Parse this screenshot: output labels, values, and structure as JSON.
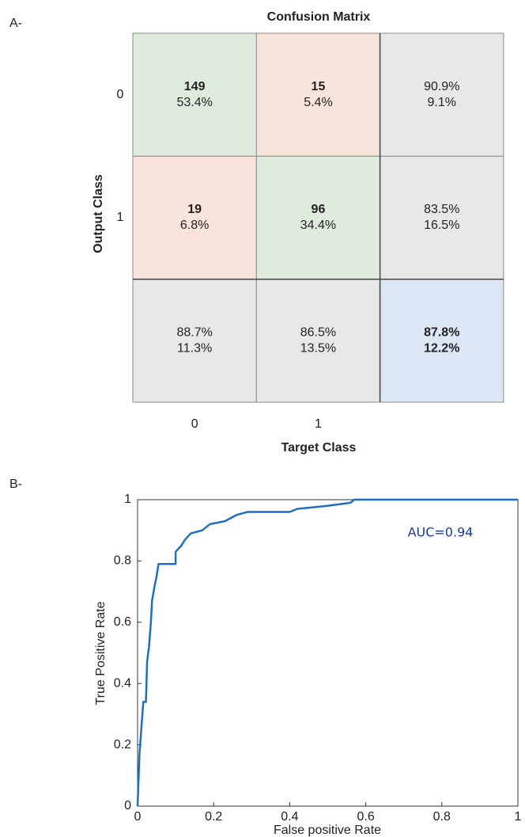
{
  "chart_data": [
    {
      "type": "confusion_matrix",
      "panel_label": "A-",
      "title": "Confusion Matrix",
      "x_label": "Target Class",
      "y_label": "Output Class",
      "categories": [
        "0",
        "1"
      ],
      "values": [
        [
          149,
          15
        ],
        [
          19,
          96
        ]
      ],
      "percents": [
        [
          53.4,
          5.4
        ],
        [
          6.8,
          34.4
        ]
      ],
      "percent_labels": [
        [
          "53.4%",
          "5.4%"
        ],
        [
          "6.8%",
          "34.4%"
        ]
      ],
      "row_summary": {
        "values": [
          [
            90.9,
            9.1
          ],
          [
            83.5,
            16.5
          ]
        ],
        "value_labels": [
          [
            "90.9%",
            "9.1%"
          ],
          [
            "83.5%",
            "16.5%"
          ]
        ]
      },
      "column_summary": {
        "values": [
          [
            88.7,
            11.3
          ],
          [
            86.5,
            13.5
          ]
        ],
        "value_labels": [
          [
            "88.7%",
            "11.3%"
          ],
          [
            "86.5%",
            "13.5%"
          ]
        ]
      },
      "overall": {
        "values": [
          87.8,
          12.2
        ],
        "value_labels": [
          "87.8%",
          "12.2%"
        ]
      },
      "colors": {
        "correct": "#e0ebdf",
        "incorrect": "#f9e4dc",
        "summary": "#e8e8e8",
        "overall": "#dce7f6",
        "good_text": "#1e7a1e",
        "bad_text": "#861c1c"
      }
    },
    {
      "type": "line",
      "panel_label": "B-",
      "x_label": "False positive Rate",
      "y_label": "True Positive Rate",
      "annotation": "AUC=0.94",
      "x": [
        0,
        0.005,
        0.015,
        0.022,
        0.025,
        0.03,
        0.035,
        0.038,
        0.045,
        0.05,
        0.055,
        0.1,
        0.1,
        0.115,
        0.125,
        0.14,
        0.17,
        0.19,
        0.23,
        0.26,
        0.29,
        0.4,
        0.42,
        0.5,
        0.56,
        0.57,
        1
      ],
      "series": [
        {
          "color": "#1f6fbf",
          "values": [
            0,
            0.17,
            0.34,
            0.34,
            0.47,
            0.52,
            0.6,
            0.67,
            0.72,
            0.75,
            0.79,
            0.79,
            0.83,
            0.85,
            0.87,
            0.89,
            0.9,
            0.92,
            0.93,
            0.95,
            0.96,
            0.96,
            0.97,
            0.98,
            0.99,
            1,
            1
          ]
        }
      ],
      "xlim": [
        0,
        1
      ],
      "ylim": [
        0,
        1
      ],
      "xticks": [
        0,
        0.2,
        0.4,
        0.6,
        0.8,
        1
      ],
      "yticks": [
        0,
        0.2,
        0.4,
        0.6,
        0.8,
        1
      ]
    }
  ]
}
